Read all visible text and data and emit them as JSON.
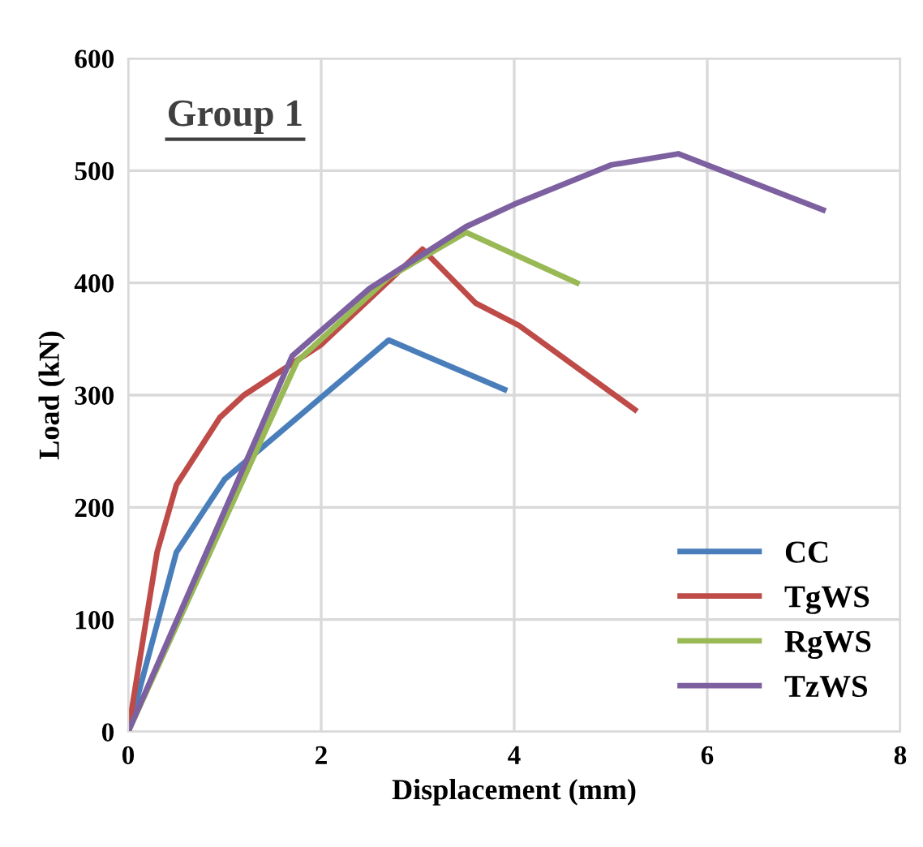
{
  "chart_data": {
    "type": "line",
    "title": "Group 1",
    "xlabel": "Displacement (mm)",
    "ylabel": "Load (kN)",
    "xlim": [
      0,
      8
    ],
    "xticks": [
      0,
      2,
      4,
      6,
      8
    ],
    "ylim": [
      0,
      600
    ],
    "yticks": [
      0,
      100,
      200,
      300,
      400,
      500,
      600
    ],
    "grid": true,
    "legend": "bottom right",
    "marker": "none",
    "line_style": "solid",
    "series": [
      {
        "name": "CC",
        "color": "#4a7ebb",
        "x": [
          0,
          0.5,
          1.0,
          2.7,
          3.9
        ],
        "values": [
          0,
          160,
          225,
          349,
          305
        ]
      },
      {
        "name": "TgWS",
        "color": "#be4b48",
        "x": [
          0,
          0.3,
          0.5,
          0.95,
          1.2,
          2.0,
          3.05,
          3.6,
          4.05,
          5.25
        ],
        "values": [
          0,
          160,
          220,
          280,
          300,
          345,
          430,
          382,
          362,
          287
        ]
      },
      {
        "name": "RgWS",
        "color": "#98b954",
        "x": [
          0,
          1.75,
          2.7,
          3.5,
          4.65
        ],
        "values": [
          0,
          330,
          405,
          445,
          400
        ]
      },
      {
        "name": "TzWS",
        "color": "#7d60a0",
        "x": [
          0,
          1.7,
          2.5,
          3.5,
          4.0,
          5.0,
          5.7,
          7.2
        ],
        "values": [
          0,
          335,
          395,
          450,
          470,
          505,
          515,
          465
        ]
      }
    ]
  }
}
